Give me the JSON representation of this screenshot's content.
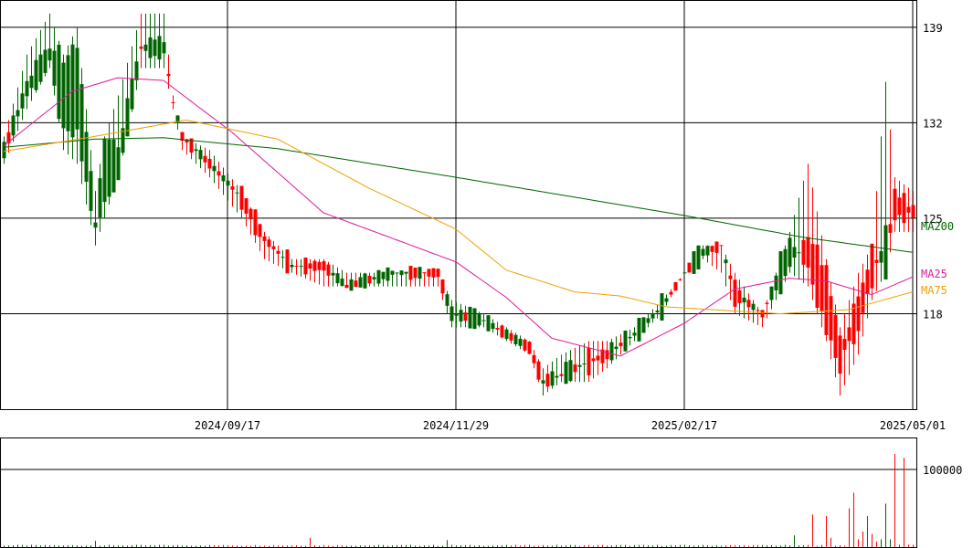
{
  "chart_data": {
    "type": "candlestick",
    "price_axis": {
      "ticks": [
        118,
        125,
        132,
        139
      ],
      "range": [
        111,
        141
      ]
    },
    "volume_axis": {
      "ticks": [
        100000
      ],
      "range": [
        0,
        140000
      ]
    },
    "date_ticks": [
      {
        "label": "2024/09/17",
        "index": 49
      },
      {
        "label": "2024/11/29",
        "index": 99
      },
      {
        "label": "2025/02/17",
        "index": 149
      },
      {
        "label": "2025/05/01",
        "index": 199
      }
    ],
    "ma_labels": [
      {
        "name": "MA200",
        "color": "#006400"
      },
      {
        "name": "MA25",
        "color": "#dd1a9a"
      },
      {
        "name": "MA75",
        "color": "#f0a000"
      }
    ],
    "colors": {
      "up": "#006400",
      "down": "#ff0000",
      "grid": "#000000"
    },
    "anchors": [
      [
        0,
        130,
        130,
        129,
        131
      ],
      [
        5,
        134,
        135,
        133,
        137
      ],
      [
        10,
        136,
        138,
        136,
        140
      ],
      [
        13,
        131,
        137,
        130,
        137
      ],
      [
        16,
        131,
        138,
        129,
        139
      ],
      [
        20,
        124,
        125,
        123,
        127
      ],
      [
        22,
        126,
        131,
        125,
        131
      ],
      [
        25,
        128,
        130,
        128,
        134
      ],
      [
        30,
        137,
        138,
        136,
        140
      ],
      [
        35,
        137,
        138,
        136,
        140
      ],
      [
        37,
        133,
        134,
        133,
        134
      ],
      [
        39,
        131,
        131,
        130,
        131
      ],
      [
        45,
        129,
        129,
        128,
        130
      ],
      [
        52,
        127,
        126,
        125,
        127
      ],
      [
        57,
        124,
        123,
        122,
        124
      ],
      [
        63,
        122,
        121,
        121,
        122
      ],
      [
        70,
        122,
        121,
        120,
        122
      ],
      [
        75,
        120,
        120,
        120,
        121
      ],
      [
        85,
        121,
        121,
        120,
        121
      ],
      [
        95,
        121,
        121,
        120,
        121
      ],
      [
        98,
        118,
        118,
        117,
        119
      ],
      [
        105,
        117,
        118,
        117,
        118
      ],
      [
        115,
        116,
        115,
        115,
        116
      ],
      [
        118,
        113,
        113,
        112,
        114
      ],
      [
        122,
        113,
        114,
        113,
        115
      ],
      [
        128,
        115,
        114,
        113,
        116
      ],
      [
        132,
        115,
        115,
        114,
        116
      ],
      [
        138,
        116,
        117,
        116,
        117
      ],
      [
        144,
        118,
        119,
        118,
        119
      ],
      [
        149,
        121,
        121,
        121,
        121
      ],
      [
        153,
        122,
        123,
        122,
        123
      ],
      [
        157,
        123,
        123,
        121,
        123
      ],
      [
        160,
        120,
        119,
        118,
        121
      ],
      [
        166,
        118,
        118,
        117,
        118
      ],
      [
        172,
        121,
        124,
        121,
        124
      ],
      [
        176,
        124,
        121,
        120,
        129
      ],
      [
        180,
        121,
        117,
        116,
        122
      ],
      [
        183,
        116,
        114,
        112,
        117
      ],
      [
        187,
        119,
        117,
        115,
        121
      ],
      [
        190,
        123,
        120,
        119,
        123
      ],
      [
        193,
        121,
        124,
        121,
        135
      ],
      [
        195,
        127,
        125,
        124,
        128
      ],
      [
        199,
        126,
        125,
        124,
        127
      ]
    ],
    "volumes": [
      [
        0,
        2000
      ],
      [
        5,
        2000
      ],
      [
        13,
        2000
      ],
      [
        20,
        8000
      ],
      [
        35,
        3000
      ],
      [
        67,
        12000
      ],
      [
        97,
        9000
      ],
      [
        173,
        15000
      ],
      [
        177,
        42000
      ],
      [
        180,
        40000
      ],
      [
        181,
        12000
      ],
      [
        185,
        50000
      ],
      [
        186,
        70000
      ],
      [
        187,
        10000
      ],
      [
        188,
        20000
      ],
      [
        189,
        40000
      ],
      [
        190,
        17000
      ],
      [
        191,
        7000
      ],
      [
        192,
        10000
      ],
      [
        193,
        56000
      ],
      [
        194,
        10000
      ],
      [
        195,
        120000
      ],
      [
        196,
        3000
      ],
      [
        197,
        115000
      ],
      [
        198,
        3000
      ],
      [
        199,
        3000
      ]
    ],
    "ma_anchors": {
      "MA200": [
        [
          0,
          130.2
        ],
        [
          20,
          130.8
        ],
        [
          35,
          130.9
        ],
        [
          60,
          130.1
        ],
        [
          99,
          128.0
        ],
        [
          149,
          125.2
        ],
        [
          175,
          123.6
        ],
        [
          199,
          122.5
        ]
      ],
      "MA25": [
        [
          0,
          130.3
        ],
        [
          15,
          134.3
        ],
        [
          25,
          135.3
        ],
        [
          35,
          135.1
        ],
        [
          50,
          131.3
        ],
        [
          70,
          125.4
        ],
        [
          99,
          121.8
        ],
        [
          110,
          119.2
        ],
        [
          120,
          116.2
        ],
        [
          135,
          114.9
        ],
        [
          149,
          117.3
        ],
        [
          160,
          119.8
        ],
        [
          172,
          120.6
        ],
        [
          180,
          120.4
        ],
        [
          190,
          119.4
        ],
        [
          199,
          120.7
        ]
      ],
      "MA75": [
        [
          0,
          129.9
        ],
        [
          20,
          131.0
        ],
        [
          40,
          132.2
        ],
        [
          60,
          130.8
        ],
        [
          80,
          127.2
        ],
        [
          99,
          124.2
        ],
        [
          110,
          121.2
        ],
        [
          125,
          119.6
        ],
        [
          135,
          119.3
        ],
        [
          145,
          118.5
        ],
        [
          155,
          118.3
        ],
        [
          170,
          118.0
        ],
        [
          185,
          118.3
        ],
        [
          199,
          119.6
        ]
      ]
    }
  }
}
